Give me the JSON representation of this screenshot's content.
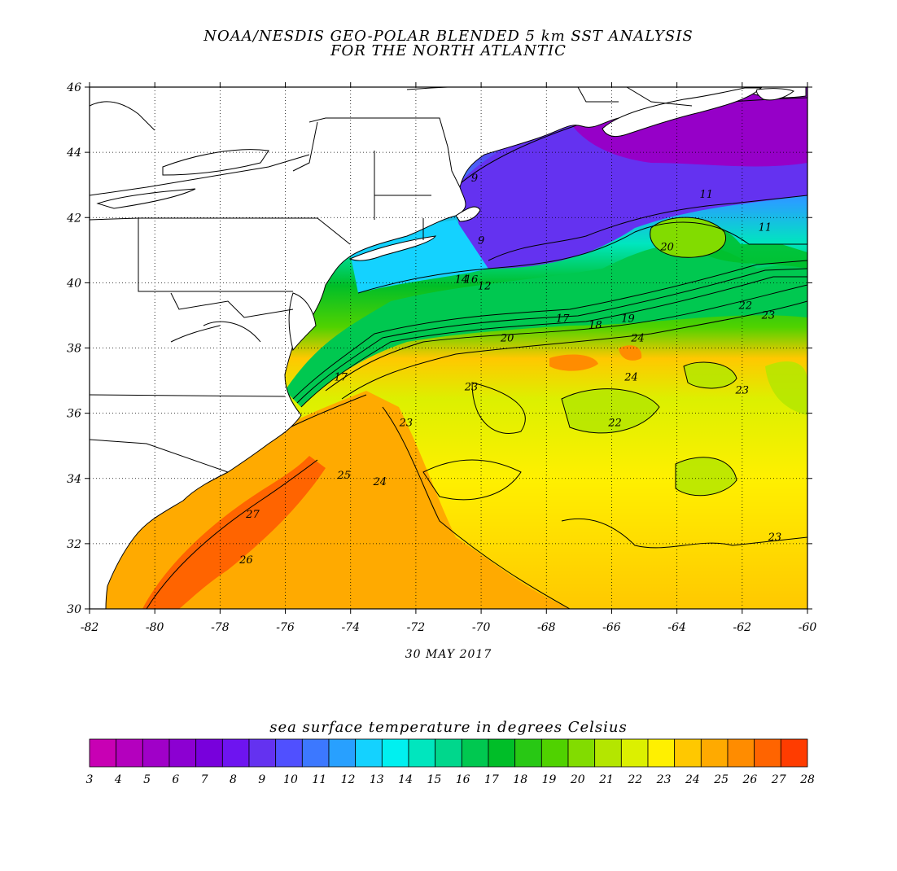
{
  "title": {
    "line1": "NOAA/NESDIS GEO-POLAR BLENDED 5 km SST ANALYSIS",
    "line2": "FOR THE NORTH ATLANTIC"
  },
  "date": "30 MAY 2017",
  "map": {
    "lon_range": [
      -82,
      -60
    ],
    "lat_range": [
      30,
      46
    ],
    "lon_ticks": [
      "-82",
      "-80",
      "-78",
      "-76",
      "-74",
      "-72",
      "-70",
      "-68",
      "-66",
      "-64",
      "-62",
      "-60"
    ],
    "lat_ticks": [
      "30",
      "32",
      "34",
      "36",
      "38",
      "40",
      "42",
      "44",
      "46"
    ],
    "grid": "dotted",
    "land_color": "#ffffff",
    "contour_labels": [
      {
        "text": "9",
        "lon": -70.2,
        "lat": 43.1
      },
      {
        "text": "9",
        "lon": -70.0,
        "lat": 41.2
      },
      {
        "text": "11",
        "lon": -63.1,
        "lat": 42.6
      },
      {
        "text": "14",
        "lon": -70.6,
        "lat": 40.0
      },
      {
        "text": "16",
        "lon": -70.3,
        "lat": 40.0
      },
      {
        "text": "12",
        "lon": -69.9,
        "lat": 39.8
      },
      {
        "text": "20",
        "lon": -64.3,
        "lat": 41.0
      },
      {
        "text": "22",
        "lon": -61.9,
        "lat": 39.2
      },
      {
        "text": "23",
        "lon": -61.2,
        "lat": 38.9
      },
      {
        "text": "17",
        "lon": -67.5,
        "lat": 38.8
      },
      {
        "text": "18",
        "lon": -66.5,
        "lat": 38.6
      },
      {
        "text": "19",
        "lon": -65.5,
        "lat": 38.8
      },
      {
        "text": "24",
        "lon": -65.2,
        "lat": 38.2
      },
      {
        "text": "20",
        "lon": -69.2,
        "lat": 38.2
      },
      {
        "text": "17",
        "lon": -74.3,
        "lat": 37.0
      },
      {
        "text": "23",
        "lon": -70.3,
        "lat": 36.7
      },
      {
        "text": "23",
        "lon": -62.0,
        "lat": 36.6
      },
      {
        "text": "23",
        "lon": -72.3,
        "lat": 35.6
      },
      {
        "text": "22",
        "lon": -65.9,
        "lat": 35.6
      },
      {
        "text": "24",
        "lon": -73.1,
        "lat": 33.8
      },
      {
        "text": "25",
        "lon": -74.2,
        "lat": 34.0
      },
      {
        "text": "27",
        "lon": -77.0,
        "lat": 32.8
      },
      {
        "text": "26",
        "lon": -77.2,
        "lat": 31.4
      },
      {
        "text": "23",
        "lon": -61.0,
        "lat": 32.1
      },
      {
        "text": "24",
        "lon": -65.4,
        "lat": 37.0
      },
      {
        "text": "11",
        "lon": -61.3,
        "lat": 41.6
      }
    ]
  },
  "colorbar": {
    "title": "sea surface temperature in degrees Celsius",
    "unit": "degrees Celsius",
    "labels": [
      "3",
      "4",
      "5",
      "6",
      "7",
      "8",
      "9",
      "10",
      "11",
      "12",
      "13",
      "14",
      "15",
      "16",
      "17",
      "18",
      "19",
      "20",
      "21",
      "22",
      "23",
      "24",
      "25",
      "26",
      "27",
      "28"
    ],
    "colors": [
      "#c800b4",
      "#b400be",
      "#a000c8",
      "#8c00d2",
      "#7800dc",
      "#6e14f0",
      "#6432f0",
      "#5050ff",
      "#3c78ff",
      "#28a0ff",
      "#14d2ff",
      "#00f0f0",
      "#00e6be",
      "#00d78c",
      "#00c850",
      "#00be28",
      "#28c814",
      "#50d200",
      "#82dc00",
      "#b4e600",
      "#dcf000",
      "#fff000",
      "#ffc800",
      "#ffaa00",
      "#ff8c00",
      "#ff6400",
      "#ff3c00"
    ]
  }
}
